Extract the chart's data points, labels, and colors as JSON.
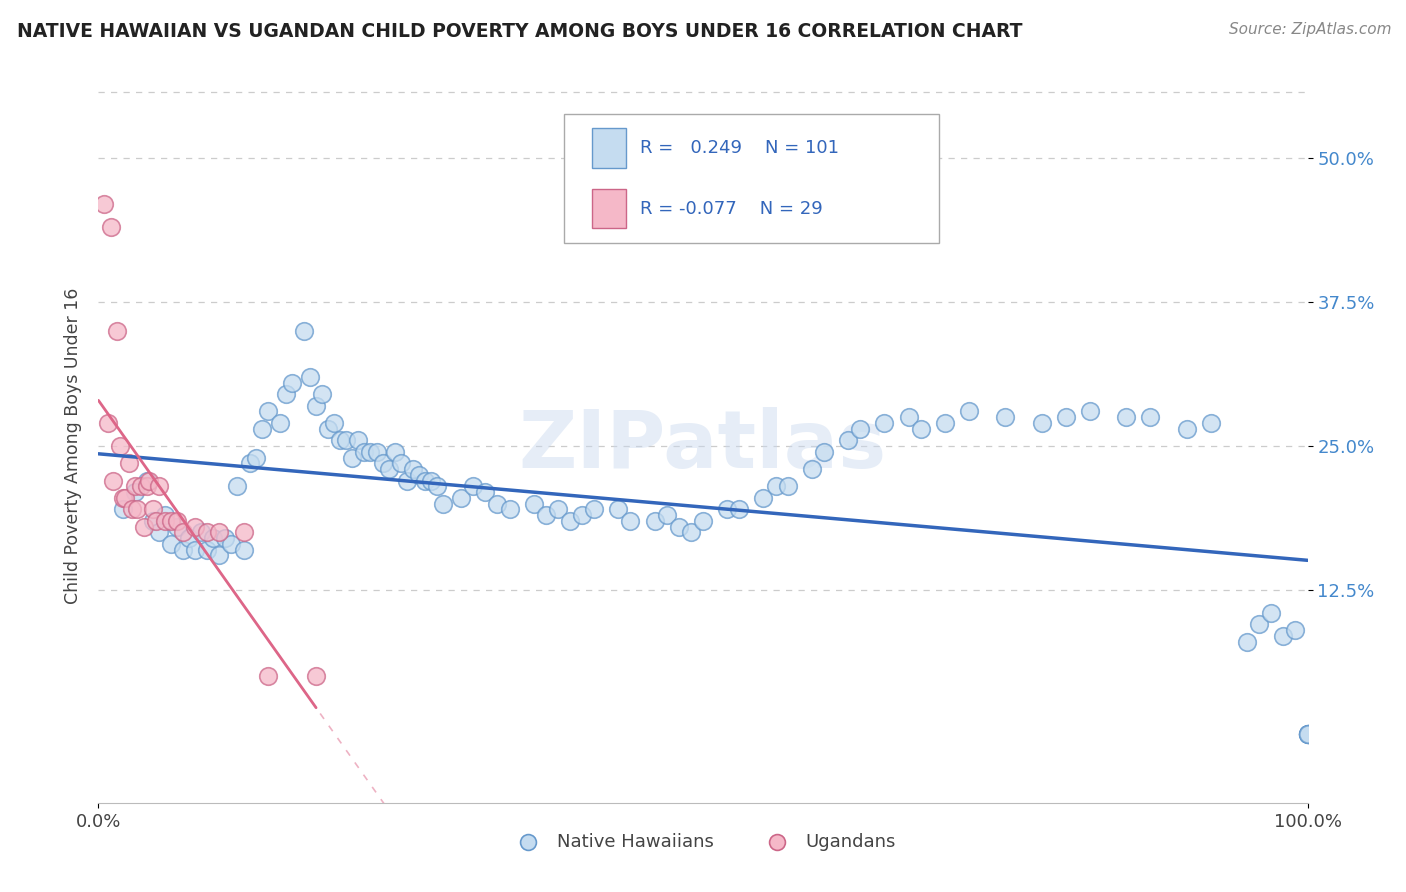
{
  "title": "NATIVE HAWAIIAN VS UGANDAN CHILD POVERTY AMONG BOYS UNDER 16 CORRELATION CHART",
  "source": "Source: ZipAtlas.com",
  "ylabel": "Child Poverty Among Boys Under 16",
  "r_hawaiian": 0.249,
  "n_hawaiian": 101,
  "r_ugandan": -0.077,
  "n_ugandan": 29,
  "color_hawaiian_fill": "#c5dcf0",
  "color_hawaiian_edge": "#6699cc",
  "color_ugandan_fill": "#f5b8c8",
  "color_ugandan_edge": "#cc6688",
  "color_hawaiian_line": "#3366bb",
  "color_ugandan_line": "#dd6688",
  "watermark": "ZIPatlas",
  "xmin": 0.0,
  "xmax": 1.0,
  "ymin": -0.06,
  "ymax": 0.56,
  "yticks": [
    0.125,
    0.25,
    0.375,
    0.5
  ],
  "ytick_labels": [
    "12.5%",
    "25.0%",
    "37.5%",
    "50.0%"
  ],
  "xticks": [
    0.0,
    1.0
  ],
  "xtick_labels": [
    "0.0%",
    "100.0%"
  ],
  "hawaiian_x": [
    0.02,
    0.03,
    0.04,
    0.045,
    0.05,
    0.055,
    0.06,
    0.065,
    0.07,
    0.075,
    0.08,
    0.085,
    0.09,
    0.095,
    0.1,
    0.105,
    0.11,
    0.115,
    0.12,
    0.125,
    0.13,
    0.135,
    0.14,
    0.15,
    0.155,
    0.16,
    0.17,
    0.175,
    0.18,
    0.185,
    0.19,
    0.195,
    0.2,
    0.205,
    0.21,
    0.215,
    0.22,
    0.225,
    0.23,
    0.235,
    0.24,
    0.245,
    0.25,
    0.255,
    0.26,
    0.265,
    0.27,
    0.275,
    0.28,
    0.285,
    0.3,
    0.31,
    0.32,
    0.33,
    0.34,
    0.36,
    0.37,
    0.38,
    0.39,
    0.4,
    0.41,
    0.43,
    0.44,
    0.46,
    0.47,
    0.48,
    0.49,
    0.5,
    0.52,
    0.53,
    0.55,
    0.56,
    0.57,
    0.59,
    0.6,
    0.62,
    0.63,
    0.65,
    0.67,
    0.68,
    0.7,
    0.72,
    0.75,
    0.78,
    0.8,
    0.82,
    0.85,
    0.87,
    0.9,
    0.92,
    0.95,
    0.96,
    0.97,
    0.98,
    0.99,
    1.0,
    1.0,
    1.0,
    1.0,
    1.0,
    1.0
  ],
  "hawaiian_y": [
    0.195,
    0.21,
    0.22,
    0.185,
    0.175,
    0.19,
    0.165,
    0.18,
    0.16,
    0.17,
    0.16,
    0.175,
    0.16,
    0.17,
    0.155,
    0.17,
    0.165,
    0.215,
    0.16,
    0.235,
    0.24,
    0.265,
    0.28,
    0.27,
    0.295,
    0.305,
    0.35,
    0.31,
    0.285,
    0.295,
    0.265,
    0.27,
    0.255,
    0.255,
    0.24,
    0.255,
    0.245,
    0.245,
    0.245,
    0.235,
    0.23,
    0.245,
    0.235,
    0.22,
    0.23,
    0.225,
    0.22,
    0.22,
    0.215,
    0.2,
    0.205,
    0.215,
    0.21,
    0.2,
    0.195,
    0.2,
    0.19,
    0.195,
    0.185,
    0.19,
    0.195,
    0.195,
    0.185,
    0.185,
    0.19,
    0.18,
    0.175,
    0.185,
    0.195,
    0.195,
    0.205,
    0.215,
    0.215,
    0.23,
    0.245,
    0.255,
    0.265,
    0.27,
    0.275,
    0.265,
    0.27,
    0.28,
    0.275,
    0.27,
    0.275,
    0.28,
    0.275,
    0.275,
    0.265,
    0.27,
    0.08,
    0.095,
    0.105,
    0.085,
    0.09,
    0.0,
    0.0,
    0.0,
    0.0,
    0.0,
    0.0
  ],
  "ugandan_x": [
    0.005,
    0.008,
    0.01,
    0.012,
    0.015,
    0.018,
    0.02,
    0.022,
    0.025,
    0.028,
    0.03,
    0.032,
    0.035,
    0.038,
    0.04,
    0.042,
    0.045,
    0.048,
    0.05,
    0.055,
    0.06,
    0.065,
    0.07,
    0.08,
    0.09,
    0.1,
    0.12,
    0.14,
    0.18
  ],
  "ugandan_y": [
    0.46,
    0.27,
    0.44,
    0.22,
    0.35,
    0.25,
    0.205,
    0.205,
    0.235,
    0.195,
    0.215,
    0.195,
    0.215,
    0.18,
    0.215,
    0.22,
    0.195,
    0.185,
    0.215,
    0.185,
    0.185,
    0.185,
    0.175,
    0.18,
    0.175,
    0.175,
    0.175,
    0.05,
    0.05
  ]
}
